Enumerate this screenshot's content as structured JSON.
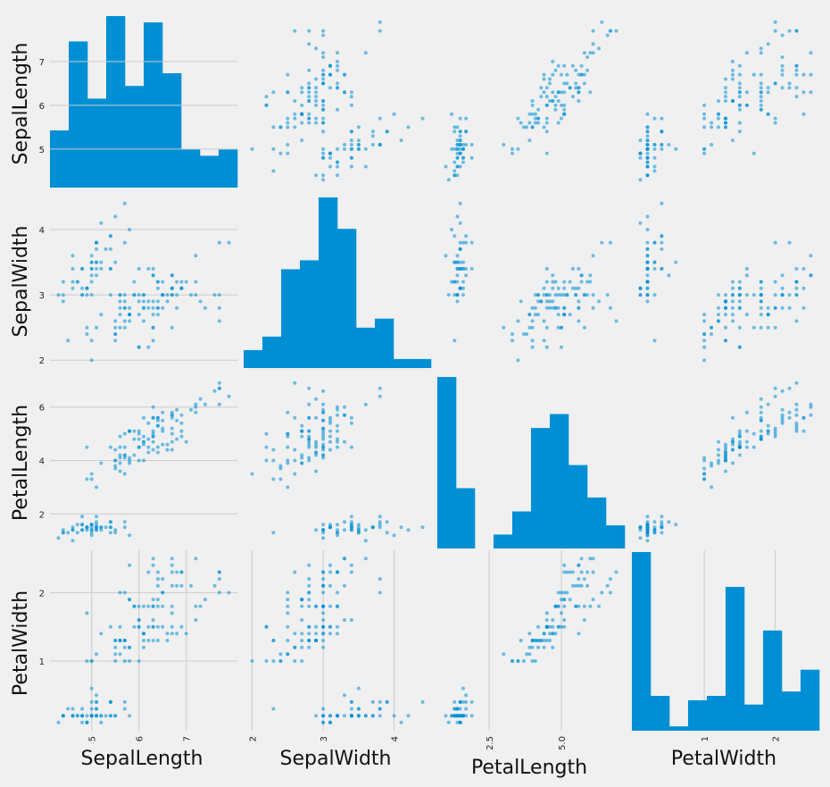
{
  "chart_data": {
    "type": "scatter_matrix",
    "title": "",
    "variables": [
      "SepalLength",
      "SepalWidth",
      "PetalLength",
      "PetalWidth"
    ],
    "diagonal": "histogram",
    "grid": true,
    "colors": {
      "background": "#f0f0f0",
      "marks": "#008fd5",
      "grid": "#cbcbcb"
    },
    "ranges": {
      "SepalLength": [
        4.3,
        7.9
      ],
      "SepalWidth": [
        2.0,
        4.4
      ],
      "PetalLength": [
        1.0,
        6.9
      ],
      "PetalWidth": [
        0.1,
        2.5
      ]
    },
    "tick_labels": {
      "SepalLength": [
        "5",
        "6",
        "7"
      ],
      "SepalWidth": [
        "2",
        "3",
        "4"
      ],
      "PetalLength": [
        "2",
        "4",
        "6"
      ],
      "PetalWidth": [
        "1",
        "2"
      ]
    },
    "tick_labels_x": {
      "SepalLength": [
        "5",
        "6",
        "7"
      ],
      "SepalWidth": [
        "2",
        "3",
        "4"
      ],
      "PetalLength": [
        "2.5",
        "5.0"
      ],
      "PetalWidth": [
        "1",
        "2"
      ]
    },
    "ticks": {
      "SepalLength": [
        5,
        6,
        7
      ],
      "SepalWidth": [
        2,
        3,
        4
      ],
      "PetalLength": [
        2,
        4,
        6
      ],
      "PetalWidth": [
        1,
        2
      ]
    },
    "ticks_x": {
      "SepalLength": [
        5,
        6,
        7
      ],
      "SepalWidth": [
        2,
        3,
        4
      ],
      "PetalLength": [
        2.5,
        5.0
      ],
      "PetalWidth": [
        1,
        2
      ]
    },
    "histograms": {
      "SepalLength": [
        9,
        23,
        14,
        27,
        16,
        26,
        18,
        6,
        5,
        6
      ],
      "SepalWidth": [
        4,
        7,
        22,
        24,
        38,
        31,
        9,
        11,
        2,
        2
      ],
      "PetalLength": [
        37,
        13,
        0,
        3,
        8,
        26,
        29,
        18,
        11,
        5
      ],
      "PetalWidth": [
        41,
        8,
        1,
        7,
        8,
        33,
        6,
        23,
        9,
        14
      ]
    },
    "rows": [
      [
        5.1,
        3.5,
        1.4,
        0.2
      ],
      [
        4.9,
        3.0,
        1.4,
        0.2
      ],
      [
        4.7,
        3.2,
        1.3,
        0.2
      ],
      [
        4.6,
        3.1,
        1.5,
        0.2
      ],
      [
        5.0,
        3.6,
        1.4,
        0.2
      ],
      [
        5.4,
        3.9,
        1.7,
        0.4
      ],
      [
        4.6,
        3.4,
        1.4,
        0.3
      ],
      [
        5.0,
        3.4,
        1.5,
        0.2
      ],
      [
        4.4,
        2.9,
        1.4,
        0.2
      ],
      [
        4.9,
        3.1,
        1.5,
        0.1
      ],
      [
        5.4,
        3.7,
        1.5,
        0.2
      ],
      [
        4.8,
        3.4,
        1.6,
        0.2
      ],
      [
        4.8,
        3.0,
        1.4,
        0.1
      ],
      [
        4.3,
        3.0,
        1.1,
        0.1
      ],
      [
        5.8,
        4.0,
        1.2,
        0.2
      ],
      [
        5.7,
        4.4,
        1.5,
        0.4
      ],
      [
        5.4,
        3.9,
        1.3,
        0.4
      ],
      [
        5.1,
        3.5,
        1.4,
        0.3
      ],
      [
        5.7,
        3.8,
        1.7,
        0.3
      ],
      [
        5.1,
        3.8,
        1.5,
        0.3
      ],
      [
        5.4,
        3.4,
        1.7,
        0.2
      ],
      [
        5.1,
        3.7,
        1.5,
        0.4
      ],
      [
        4.6,
        3.6,
        1.0,
        0.2
      ],
      [
        5.1,
        3.3,
        1.7,
        0.5
      ],
      [
        4.8,
        3.4,
        1.9,
        0.2
      ],
      [
        5.0,
        3.0,
        1.6,
        0.2
      ],
      [
        5.0,
        3.4,
        1.6,
        0.4
      ],
      [
        5.2,
        3.5,
        1.5,
        0.2
      ],
      [
        5.2,
        3.4,
        1.4,
        0.2
      ],
      [
        4.7,
        3.2,
        1.6,
        0.2
      ],
      [
        4.8,
        3.1,
        1.6,
        0.2
      ],
      [
        5.4,
        3.4,
        1.5,
        0.4
      ],
      [
        5.2,
        4.1,
        1.5,
        0.1
      ],
      [
        5.5,
        4.2,
        1.4,
        0.2
      ],
      [
        4.9,
        3.1,
        1.5,
        0.1
      ],
      [
        5.0,
        3.2,
        1.2,
        0.2
      ],
      [
        5.5,
        3.5,
        1.3,
        0.2
      ],
      [
        4.9,
        3.1,
        1.5,
        0.1
      ],
      [
        4.4,
        3.0,
        1.3,
        0.2
      ],
      [
        5.1,
        3.4,
        1.5,
        0.2
      ],
      [
        5.0,
        3.5,
        1.3,
        0.3
      ],
      [
        4.5,
        2.3,
        1.3,
        0.3
      ],
      [
        4.4,
        3.2,
        1.3,
        0.2
      ],
      [
        5.0,
        3.5,
        1.6,
        0.6
      ],
      [
        5.1,
        3.8,
        1.9,
        0.4
      ],
      [
        4.8,
        3.0,
        1.4,
        0.3
      ],
      [
        5.1,
        3.8,
        1.6,
        0.2
      ],
      [
        4.6,
        3.2,
        1.4,
        0.2
      ],
      [
        5.3,
        3.7,
        1.5,
        0.2
      ],
      [
        5.0,
        3.3,
        1.4,
        0.2
      ],
      [
        7.0,
        3.2,
        4.7,
        1.4
      ],
      [
        6.4,
        3.2,
        4.5,
        1.5
      ],
      [
        6.9,
        3.1,
        4.9,
        1.5
      ],
      [
        5.5,
        2.3,
        4.0,
        1.3
      ],
      [
        6.5,
        2.8,
        4.6,
        1.5
      ],
      [
        5.7,
        2.8,
        4.5,
        1.3
      ],
      [
        6.3,
        3.3,
        4.7,
        1.6
      ],
      [
        4.9,
        2.4,
        3.3,
        1.0
      ],
      [
        6.6,
        2.9,
        4.6,
        1.3
      ],
      [
        5.2,
        2.7,
        3.9,
        1.4
      ],
      [
        5.0,
        2.0,
        3.5,
        1.0
      ],
      [
        5.9,
        3.0,
        4.2,
        1.5
      ],
      [
        6.0,
        2.2,
        4.0,
        1.0
      ],
      [
        6.1,
        2.9,
        4.7,
        1.4
      ],
      [
        5.6,
        2.9,
        3.6,
        1.3
      ],
      [
        6.7,
        3.1,
        4.4,
        1.4
      ],
      [
        5.6,
        3.0,
        4.5,
        1.5
      ],
      [
        5.8,
        2.7,
        4.1,
        1.0
      ],
      [
        6.2,
        2.2,
        4.5,
        1.5
      ],
      [
        5.6,
        2.5,
        3.9,
        1.1
      ],
      [
        5.9,
        3.2,
        4.8,
        1.8
      ],
      [
        6.1,
        2.8,
        4.0,
        1.3
      ],
      [
        6.3,
        2.5,
        4.9,
        1.5
      ],
      [
        6.1,
        2.8,
        4.7,
        1.2
      ],
      [
        6.4,
        2.9,
        4.3,
        1.3
      ],
      [
        6.6,
        3.0,
        4.4,
        1.4
      ],
      [
        6.8,
        2.8,
        4.8,
        1.4
      ],
      [
        6.7,
        3.0,
        5.0,
        1.7
      ],
      [
        6.0,
        2.9,
        4.5,
        1.5
      ],
      [
        5.7,
        2.6,
        3.5,
        1.0
      ],
      [
        5.5,
        2.4,
        3.8,
        1.1
      ],
      [
        5.5,
        2.4,
        3.7,
        1.0
      ],
      [
        5.8,
        2.7,
        3.9,
        1.2
      ],
      [
        6.0,
        2.7,
        5.1,
        1.6
      ],
      [
        5.4,
        3.0,
        4.5,
        1.5
      ],
      [
        6.0,
        3.4,
        4.5,
        1.6
      ],
      [
        6.7,
        3.1,
        4.7,
        1.5
      ],
      [
        6.3,
        2.3,
        4.4,
        1.3
      ],
      [
        5.6,
        3.0,
        4.1,
        1.3
      ],
      [
        5.5,
        2.5,
        4.0,
        1.3
      ],
      [
        5.5,
        2.6,
        4.4,
        1.2
      ],
      [
        6.1,
        3.0,
        4.6,
        1.4
      ],
      [
        5.8,
        2.6,
        4.0,
        1.2
      ],
      [
        5.0,
        2.3,
        3.3,
        1.0
      ],
      [
        5.6,
        2.7,
        4.2,
        1.3
      ],
      [
        5.7,
        3.0,
        4.2,
        1.2
      ],
      [
        5.7,
        2.9,
        4.2,
        1.3
      ],
      [
        6.2,
        2.9,
        4.3,
        1.3
      ],
      [
        5.1,
        2.5,
        3.0,
        1.1
      ],
      [
        5.7,
        2.8,
        4.1,
        1.3
      ],
      [
        6.3,
        3.3,
        6.0,
        2.5
      ],
      [
        5.8,
        2.7,
        5.1,
        1.9
      ],
      [
        7.1,
        3.0,
        5.9,
        2.1
      ],
      [
        6.3,
        2.9,
        5.6,
        1.8
      ],
      [
        6.5,
        3.0,
        5.8,
        2.2
      ],
      [
        7.6,
        3.0,
        6.6,
        2.1
      ],
      [
        4.9,
        2.5,
        4.5,
        1.7
      ],
      [
        7.3,
        2.9,
        6.3,
        1.8
      ],
      [
        6.7,
        2.5,
        5.8,
        1.8
      ],
      [
        7.2,
        3.6,
        6.1,
        2.5
      ],
      [
        6.5,
        3.2,
        5.1,
        2.0
      ],
      [
        6.4,
        2.7,
        5.3,
        1.9
      ],
      [
        6.8,
        3.0,
        5.5,
        2.1
      ],
      [
        5.7,
        2.5,
        5.0,
        2.0
      ],
      [
        5.8,
        2.8,
        5.1,
        2.4
      ],
      [
        6.4,
        3.2,
        5.3,
        2.3
      ],
      [
        6.5,
        3.0,
        5.5,
        1.8
      ],
      [
        7.7,
        3.8,
        6.7,
        2.2
      ],
      [
        7.7,
        2.6,
        6.9,
        2.3
      ],
      [
        6.0,
        2.2,
        5.0,
        1.5
      ],
      [
        6.9,
        3.2,
        5.7,
        2.3
      ],
      [
        5.6,
        2.8,
        4.9,
        2.0
      ],
      [
        7.7,
        2.8,
        6.7,
        2.0
      ],
      [
        6.3,
        2.7,
        4.9,
        1.8
      ],
      [
        6.7,
        3.3,
        5.7,
        2.1
      ],
      [
        7.2,
        3.2,
        6.0,
        1.8
      ],
      [
        6.2,
        2.8,
        4.8,
        1.8
      ],
      [
        6.1,
        3.0,
        4.9,
        1.8
      ],
      [
        6.4,
        2.8,
        5.6,
        2.1
      ],
      [
        7.2,
        3.0,
        5.8,
        1.6
      ],
      [
        7.4,
        2.8,
        6.1,
        1.9
      ],
      [
        7.9,
        3.8,
        6.4,
        2.0
      ],
      [
        6.4,
        2.8,
        5.6,
        2.2
      ],
      [
        6.3,
        2.8,
        5.1,
        1.5
      ],
      [
        6.1,
        2.6,
        5.6,
        1.4
      ],
      [
        7.7,
        3.0,
        6.1,
        2.3
      ],
      [
        6.3,
        3.4,
        5.6,
        2.4
      ],
      [
        6.4,
        3.1,
        5.5,
        1.8
      ],
      [
        6.0,
        3.0,
        4.8,
        1.8
      ],
      [
        6.9,
        3.1,
        5.4,
        2.1
      ],
      [
        6.7,
        3.1,
        5.6,
        2.4
      ],
      [
        6.9,
        3.1,
        5.1,
        2.3
      ],
      [
        5.8,
        2.7,
        5.1,
        1.9
      ],
      [
        6.8,
        3.2,
        5.9,
        2.3
      ],
      [
        6.7,
        3.3,
        5.7,
        2.5
      ],
      [
        6.7,
        3.0,
        5.2,
        2.3
      ],
      [
        6.3,
        2.5,
        5.0,
        1.9
      ],
      [
        6.5,
        3.0,
        5.2,
        2.0
      ],
      [
        6.2,
        3.4,
        5.4,
        2.3
      ],
      [
        5.9,
        3.0,
        5.1,
        1.8
      ]
    ]
  }
}
